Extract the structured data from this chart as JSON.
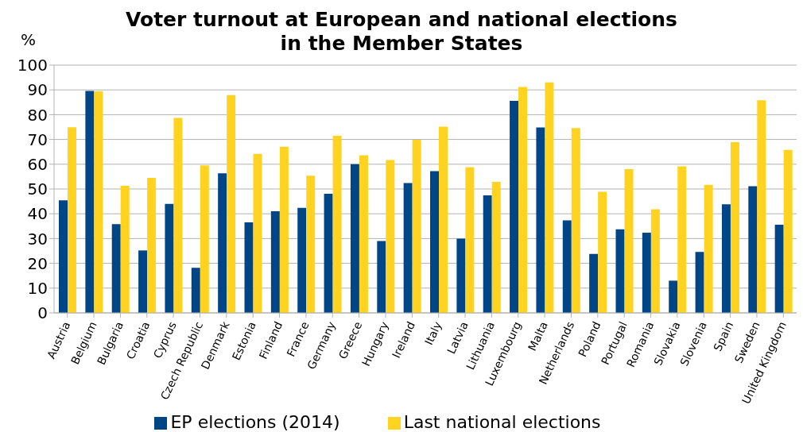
{
  "chart_data": {
    "type": "bar",
    "title": "Voter turnout at European and national elections\nin the Member States",
    "ylabel": "%",
    "categories": [
      "Austria",
      "Belgium",
      "Bulgaria",
      "Croatia",
      "Cyprus",
      "Czech Republic",
      "Denmark",
      "Estonia",
      "Finland",
      "France",
      "Germany",
      "Greece",
      "Hungary",
      "Ireland",
      "Italy",
      "Latvia",
      "Lithuania",
      "Luxembourg",
      "Malta",
      "Netherlands",
      "Poland",
      "Portugal",
      "Romania",
      "Slovakia",
      "Slovenia",
      "Spain",
      "Sweden",
      "United Kingdom"
    ],
    "series": [
      {
        "name": "EP elections (2014)",
        "color": "#004586",
        "values": [
          45.4,
          89.6,
          35.8,
          25.2,
          44,
          18.2,
          56.3,
          36.5,
          41,
          42.4,
          48.1,
          60,
          29,
          52.4,
          57.2,
          30,
          47.4,
          85.6,
          74.8,
          37.3,
          23.8,
          33.7,
          32.4,
          13,
          24.6,
          43.8,
          51.1,
          35.6
        ]
      },
      {
        "name": "Last national elections",
        "color": "#ffd320",
        "values": [
          74.9,
          89.4,
          51.3,
          54.5,
          78.7,
          59.5,
          87.9,
          64.2,
          67.1,
          55.4,
          71.5,
          63.6,
          61.7,
          69.9,
          75.2,
          58.8,
          52.9,
          91.2,
          93,
          74.6,
          48.9,
          58,
          41.8,
          59.1,
          51.7,
          68.9,
          85.8,
          65.8
        ]
      }
    ],
    "ylim": [
      0,
      100
    ],
    "yticks": [
      0,
      10,
      20,
      30,
      40,
      50,
      60,
      70,
      80,
      90,
      100
    ],
    "grid": "y",
    "legend": "bottom"
  }
}
